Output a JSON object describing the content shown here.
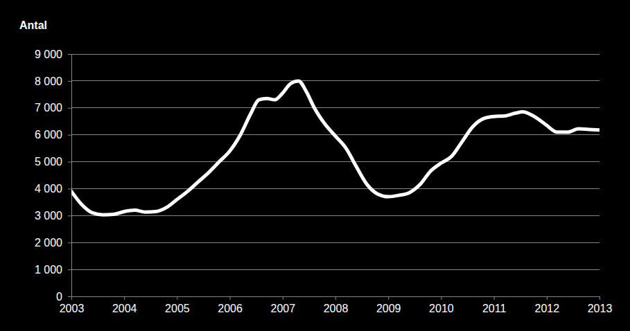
{
  "chart_data": {
    "type": "line",
    "y_label": "Antal",
    "x": [
      2003.0,
      2003.2,
      2003.4,
      2003.6,
      2003.8,
      2004.0,
      2004.2,
      2004.4,
      2004.6,
      2004.8,
      2005.0,
      2005.2,
      2005.4,
      2005.6,
      2005.8,
      2006.0,
      2006.2,
      2006.4,
      2006.55,
      2006.7,
      2006.85,
      2007.0,
      2007.15,
      2007.3,
      2007.45,
      2007.6,
      2007.8,
      2008.0,
      2008.2,
      2008.4,
      2008.6,
      2008.8,
      2009.0,
      2009.2,
      2009.4,
      2009.6,
      2009.8,
      2010.0,
      2010.2,
      2010.4,
      2010.6,
      2010.8,
      2011.0,
      2011.2,
      2011.4,
      2011.55,
      2011.7,
      2011.9,
      2012.0,
      2012.2,
      2012.4,
      2012.6,
      2012.8,
      2013.0
    ],
    "values": [
      3900,
      3400,
      3100,
      3030,
      3050,
      3150,
      3200,
      3130,
      3150,
      3300,
      3600,
      3900,
      4250,
      4600,
      5000,
      5400,
      6000,
      6800,
      7300,
      7350,
      7300,
      7550,
      7900,
      8000,
      7600,
      7000,
      6400,
      5950,
      5500,
      4800,
      4150,
      3800,
      3700,
      3750,
      3850,
      4150,
      4650,
      4950,
      5200,
      5750,
      6300,
      6600,
      6680,
      6700,
      6800,
      6850,
      6750,
      6500,
      6350,
      6100,
      6100,
      6220,
      6200,
      6180
    ],
    "color": "#ffffff",
    "xlim": [
      2003,
      2013
    ],
    "xticks": [
      2003,
      2004,
      2005,
      2006,
      2007,
      2008,
      2009,
      2010,
      2011,
      2012,
      2013
    ],
    "ylim": [
      0,
      9000
    ],
    "yticks": [
      0,
      {
        "value": 1000,
        "label": "1 000"
      },
      {
        "value": 2000,
        "label": "2 000"
      },
      {
        "value": 3000,
        "label": "3 000"
      },
      {
        "value": 4000,
        "label": "4 000"
      },
      {
        "value": 5000,
        "label": "5 000"
      },
      {
        "value": 6000,
        "label": "6 000"
      },
      {
        "value": 7000,
        "label": "7 000"
      },
      {
        "value": 8000,
        "label": "8 000"
      },
      {
        "value": 9000,
        "label": "9 000"
      }
    ],
    "grid": true
  }
}
